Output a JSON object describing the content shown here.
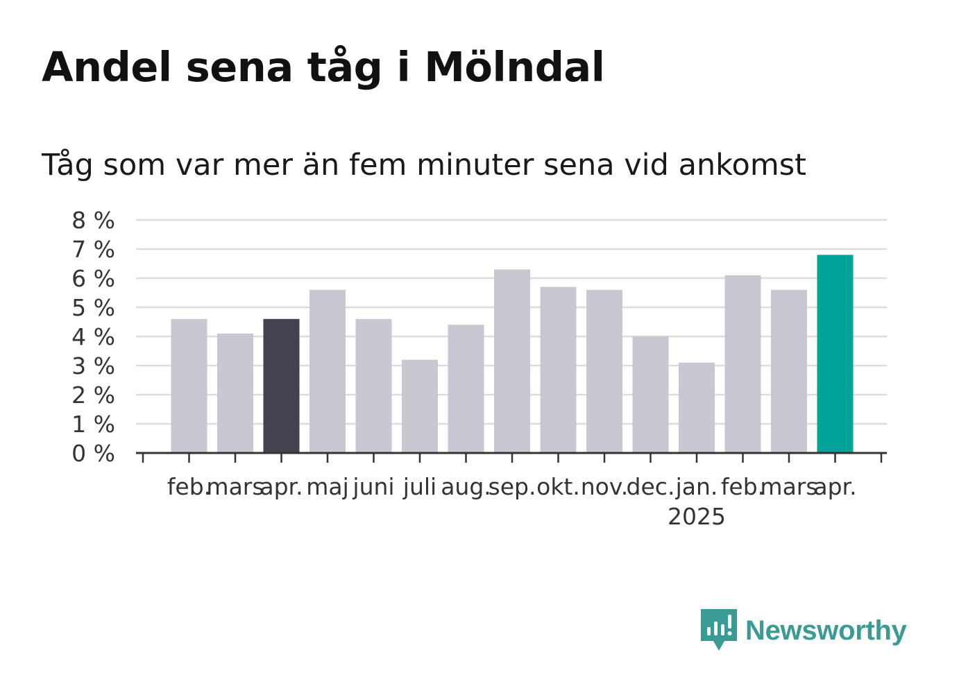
{
  "title": "Andel sena tåg i Mölndal",
  "subtitle": "Tåg som var mer än fem minuter sena vid ankomst",
  "brand": {
    "name": "Newsworthy",
    "color": "#3a9a94",
    "icon": "newsworthy-chart-icon"
  },
  "colors": {
    "bar": "#c8c7d2",
    "previous_year_highlight": "#43424e",
    "current_highlight": "#00a398",
    "grid": "#dcdcdc",
    "axis": "#333333"
  },
  "chart_data": {
    "type": "bar",
    "title": "Andel sena tåg i Mölndal",
    "subtitle": "Tåg som var mer än fem minuter sena vid ankomst",
    "xlabel": "",
    "ylabel": "",
    "categories": [
      "feb.",
      "mars",
      "apr.",
      "maj",
      "juni",
      "juli",
      "aug.",
      "sep.",
      "okt.",
      "nov.",
      "dec.",
      "jan.",
      "feb.",
      "mars",
      "apr."
    ],
    "year_label": {
      "text": "2025",
      "category_index": 11
    },
    "values": [
      4.6,
      4.1,
      4.6,
      5.6,
      4.6,
      3.2,
      4.4,
      6.3,
      5.7,
      5.6,
      4.0,
      3.1,
      6.1,
      5.6,
      6.8
    ],
    "highlight": {
      "2": "previous_year_highlight",
      "14": "current_highlight"
    },
    "ylim": [
      0,
      8
    ],
    "yticks": [
      0,
      1,
      2,
      3,
      4,
      5,
      6,
      7,
      8
    ],
    "ytick_suffix": " %",
    "grid": true,
    "legend": "none"
  }
}
